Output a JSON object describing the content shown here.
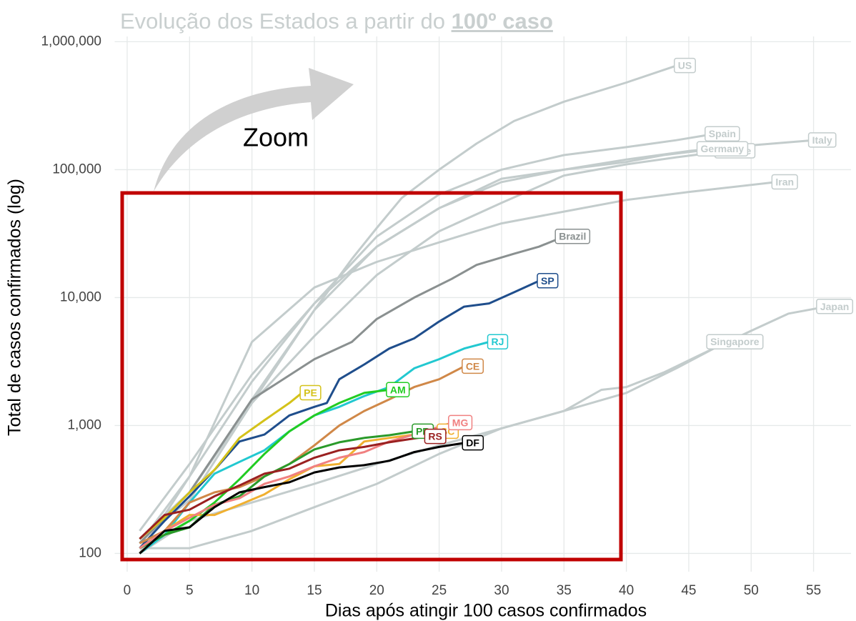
{
  "chart_data": {
    "type": "line",
    "title": "Evolução dos Estados a partir do",
    "title_highlight": "100º caso",
    "annotation": "Zoom",
    "x_label": "Dias após atingir 100 casos confirmados",
    "y_label": "Total de casos confirmados (log)",
    "log_y": true,
    "grid": true,
    "xlim": [
      -1,
      58
    ],
    "ylim": [
      72,
      1100000
    ],
    "xticks": [
      0,
      5,
      10,
      15,
      20,
      25,
      30,
      35,
      40,
      45,
      50,
      55
    ],
    "yticks": [
      100,
      {
        "value": 1000,
        "label": "1,000"
      },
      {
        "value": 10000,
        "label": "10,000"
      },
      {
        "value": 100000,
        "label": "100,000"
      },
      {
        "value": 1000000,
        "label": "1,000,000"
      }
    ],
    "series": [
      {
        "name": "US",
        "color": "#c3cccc",
        "x": [
          1,
          5,
          10,
          15,
          18,
          20,
          22,
          25,
          28,
          31,
          35,
          40,
          44
        ],
        "values": [
          130,
          300,
          1600,
          8000,
          20000,
          35000,
          60000,
          100000,
          160000,
          240000,
          340000,
          480000,
          650000
        ]
      },
      {
        "name": "Spain",
        "color": "#c3cccc",
        "x": [
          1,
          5,
          10,
          15,
          20,
          25,
          30,
          35,
          40,
          44,
          47
        ],
        "values": [
          120,
          400,
          2200,
          9000,
          30000,
          64000,
          100000,
          130000,
          150000,
          170000,
          190000
        ]
      },
      {
        "name": "Italy",
        "color": "#c3cccc",
        "x": [
          1,
          5,
          10,
          15,
          20,
          25,
          30,
          35,
          40,
          45,
          50,
          55
        ],
        "values": [
          150,
          500,
          2500,
          9000,
          25000,
          50000,
          80000,
          100000,
          120000,
          140000,
          155000,
          170000
        ]
      },
      {
        "name": "France",
        "color": "#c3cccc",
        "x": [
          1,
          5,
          10,
          15,
          20,
          25,
          30,
          35,
          40,
          44,
          48
        ],
        "values": [
          130,
          300,
          1500,
          5000,
          15000,
          33000,
          55000,
          90000,
          110000,
          125000,
          140000
        ]
      },
      {
        "name": "Germany",
        "color": "#c3cccc",
        "x": [
          1,
          5,
          10,
          15,
          20,
          25,
          30,
          35,
          40,
          43,
          47
        ],
        "values": [
          130,
          260,
          1500,
          8000,
          25000,
          50000,
          85000,
          100000,
          115000,
          130000,
          145000
        ]
      },
      {
        "name": "Iran",
        "color": "#c3cccc",
        "x": [
          1,
          5,
          10,
          15,
          20,
          25,
          30,
          35,
          40,
          45,
          52
        ],
        "values": [
          100,
          400,
          4500,
          12000,
          19000,
          27000,
          38000,
          47000,
          58000,
          67000,
          80000
        ]
      },
      {
        "name": "Japan",
        "color": "#c3cccc",
        "x": [
          1,
          5,
          10,
          15,
          20,
          25,
          30,
          35,
          38,
          40,
          43,
          46,
          50,
          53,
          56
        ],
        "values": [
          110,
          110,
          150,
          230,
          350,
          600,
          950,
          1300,
          1900,
          2000,
          2600,
          3600,
          5500,
          7500,
          8500
        ]
      },
      {
        "name": "Singapore",
        "color": "#c3cccc",
        "x": [
          1,
          5,
          10,
          15,
          20,
          25,
          30,
          35,
          40,
          44,
          48
        ],
        "values": [
          100,
          180,
          250,
          350,
          500,
          700,
          950,
          1300,
          1800,
          2800,
          4500
        ]
      },
      {
        "name": "Brazil",
        "color": "#8a9090",
        "x": [
          1,
          5,
          10,
          15,
          18,
          20,
          23,
          26,
          28,
          31,
          33,
          35
        ],
        "values": [
          120,
          300,
          1600,
          3300,
          4500,
          6800,
          10000,
          14000,
          18000,
          22000,
          25000,
          30000
        ]
      },
      {
        "name": "SP",
        "color": "#1f4e8c",
        "x": [
          1,
          3,
          5,
          7,
          9,
          11,
          13,
          15,
          16,
          17,
          19,
          21,
          23,
          25,
          27,
          29,
          31,
          33
        ],
        "values": [
          110,
          180,
          280,
          450,
          750,
          850,
          1200,
          1400,
          1500,
          2300,
          3000,
          4000,
          4800,
          6500,
          8500,
          9000,
          11000,
          13500
        ]
      },
      {
        "name": "RJ",
        "color": "#22c8d0",
        "x": [
          1,
          3,
          5,
          7,
          9,
          11,
          13,
          15,
          17,
          19,
          21,
          23,
          25,
          27,
          29
        ],
        "values": [
          100,
          140,
          250,
          420,
          520,
          640,
          900,
          1200,
          1400,
          1700,
          2000,
          2800,
          3300,
          4000,
          4500
        ]
      },
      {
        "name": "PE",
        "color": "#d4c21a",
        "x": [
          1,
          3,
          5,
          7,
          9,
          11,
          13,
          14
        ],
        "values": [
          130,
          190,
          300,
          450,
          800,
          1100,
          1500,
          1800
        ]
      },
      {
        "name": "AM",
        "color": "#22cc22",
        "x": [
          1,
          3,
          5,
          7,
          9,
          11,
          13,
          15,
          17,
          19,
          21
        ],
        "values": [
          110,
          140,
          180,
          250,
          380,
          600,
          900,
          1200,
          1500,
          1800,
          1900
        ]
      },
      {
        "name": "CE",
        "color": "#d08848",
        "x": [
          1,
          3,
          5,
          7,
          9,
          11,
          13,
          15,
          17,
          19,
          21,
          23,
          25,
          27
        ],
        "values": [
          120,
          150,
          250,
          300,
          330,
          400,
          500,
          700,
          1000,
          1300,
          1600,
          2000,
          2300,
          2900
        ]
      },
      {
        "name": "SC",
        "color": "#f0b030",
        "x": [
          1,
          3,
          5,
          7,
          9,
          11,
          13,
          15,
          17,
          19,
          21,
          23,
          25
        ],
        "values": [
          100,
          150,
          200,
          200,
          240,
          290,
          380,
          480,
          500,
          750,
          800,
          850,
          900
        ]
      },
      {
        "name": "PR",
        "color": "#2a9a2a",
        "x": [
          1,
          3,
          5,
          7,
          9,
          11,
          13,
          15,
          17,
          19,
          21,
          23
        ],
        "values": [
          110,
          140,
          160,
          240,
          280,
          400,
          500,
          650,
          740,
          800,
          840,
          900
        ]
      },
      {
        "name": "MG",
        "color": "#f08080",
        "x": [
          1,
          3,
          5,
          7,
          9,
          11,
          13,
          15,
          17,
          19,
          21,
          23,
          26
        ],
        "values": [
          110,
          150,
          190,
          240,
          270,
          350,
          400,
          480,
          560,
          620,
          750,
          850,
          1050
        ]
      },
      {
        "name": "RS",
        "color": "#9a2020",
        "x": [
          1,
          3,
          5,
          7,
          9,
          11,
          13,
          15,
          17,
          19,
          21,
          24
        ],
        "values": [
          130,
          200,
          220,
          280,
          340,
          420,
          460,
          560,
          640,
          680,
          740,
          820
        ]
      },
      {
        "name": "DF",
        "color": "#000000",
        "x": [
          1,
          3,
          5,
          7,
          9,
          11,
          13,
          15,
          17,
          19,
          21,
          23,
          25,
          27
        ],
        "values": [
          100,
          150,
          160,
          230,
          300,
          330,
          360,
          430,
          470,
          490,
          530,
          620,
          680,
          730
        ]
      }
    ]
  }
}
